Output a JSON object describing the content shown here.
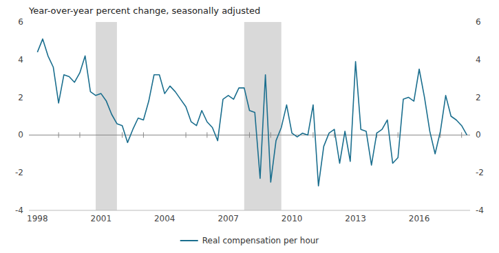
{
  "chart_data": {
    "type": "line",
    "title": "Year-over-year percent change, seasonally adjusted",
    "x": [
      1998.0,
      1998.25,
      1998.5,
      1998.75,
      1999.0,
      1999.25,
      1999.5,
      1999.75,
      2000.0,
      2000.25,
      2000.5,
      2000.75,
      2001.0,
      2001.25,
      2001.5,
      2001.75,
      2002.0,
      2002.25,
      2002.5,
      2002.75,
      2003.0,
      2003.25,
      2003.5,
      2003.75,
      2004.0,
      2004.25,
      2004.5,
      2004.75,
      2005.0,
      2005.25,
      2005.5,
      2005.75,
      2006.0,
      2006.25,
      2006.5,
      2006.75,
      2007.0,
      2007.25,
      2007.5,
      2007.75,
      2008.0,
      2008.25,
      2008.5,
      2008.75,
      2009.0,
      2009.25,
      2009.5,
      2009.75,
      2010.0,
      2010.25,
      2010.5,
      2010.75,
      2011.0,
      2011.25,
      2011.5,
      2011.75,
      2012.0,
      2012.25,
      2012.5,
      2012.75,
      2013.0,
      2013.25,
      2013.5,
      2013.75,
      2014.0,
      2014.25,
      2014.5,
      2014.75,
      2015.0,
      2015.25,
      2015.5,
      2015.75,
      2016.0,
      2016.25,
      2016.5,
      2016.75,
      2017.0,
      2017.25,
      2017.5,
      2017.75,
      2018.0,
      2018.25
    ],
    "series": [
      {
        "name": "Real compensation per hour",
        "color": "#1a6e8e",
        "values": [
          4.4,
          5.1,
          4.2,
          3.6,
          1.7,
          3.2,
          3.1,
          2.8,
          3.3,
          4.2,
          2.3,
          2.1,
          2.2,
          1.8,
          1.1,
          0.6,
          0.5,
          -0.4,
          0.3,
          0.9,
          0.8,
          1.8,
          3.2,
          3.2,
          2.2,
          2.6,
          2.3,
          1.9,
          1.5,
          0.7,
          0.5,
          1.3,
          0.7,
          0.4,
          -0.3,
          1.9,
          2.1,
          1.9,
          2.5,
          2.5,
          1.3,
          1.2,
          -2.3,
          3.2,
          -2.5,
          -0.3,
          0.4,
          1.6,
          0.1,
          -0.1,
          0.1,
          0.0,
          1.6,
          -2.7,
          -0.6,
          0.1,
          0.3,
          -1.5,
          0.2,
          -1.4,
          3.9,
          0.3,
          0.2,
          -1.6,
          0.1,
          0.3,
          0.8,
          -1.5,
          -1.2,
          1.9,
          2.0,
          1.8,
          3.5,
          2.0,
          0.2,
          -1.0,
          0.2,
          2.1,
          1.0,
          0.8,
          0.5,
          0.0
        ]
      }
    ],
    "xlim": [
      1997.6,
      2018.4
    ],
    "ylim": [
      -4,
      6
    ],
    "xticks": [
      1998,
      2001,
      2004,
      2007,
      2010,
      2013,
      2016
    ],
    "yticks": [
      -4,
      -2,
      0,
      2,
      4,
      6
    ],
    "recessions": [
      [
        2000.75,
        2001.75
      ],
      [
        2007.75,
        2009.5
      ]
    ],
    "baseline": 0,
    "x_minor_ticks": [
      1999,
      2000,
      2002,
      2003,
      2005,
      2006,
      2008,
      2009,
      2011,
      2012,
      2014,
      2015,
      2017,
      2018
    ],
    "grid": false,
    "legend": "bottom"
  }
}
